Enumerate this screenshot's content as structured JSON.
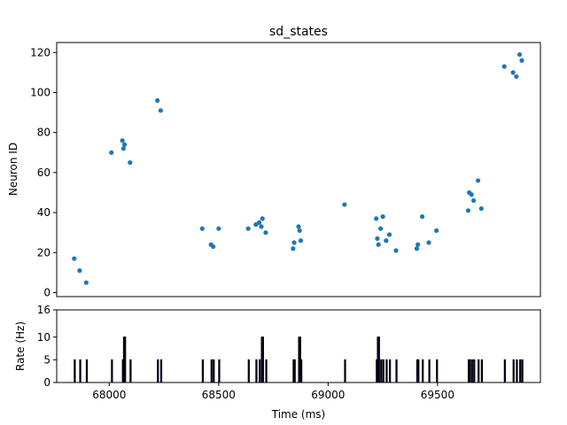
{
  "chart_data": [
    {
      "type": "scatter",
      "title": "sd_states",
      "xlabel": "",
      "ylabel": "Neuron ID",
      "xlim": [
        67760,
        69970
      ],
      "ylim": [
        -2,
        125
      ],
      "yticks": [
        0,
        20,
        40,
        60,
        80,
        100,
        120
      ],
      "grid": false,
      "marker_color": "#1f77b4",
      "points": [
        {
          "x": 67840,
          "y": 17
        },
        {
          "x": 67865,
          "y": 11
        },
        {
          "x": 67895,
          "y": 5
        },
        {
          "x": 68010,
          "y": 70
        },
        {
          "x": 68060,
          "y": 76
        },
        {
          "x": 68065,
          "y": 72
        },
        {
          "x": 68070,
          "y": 74
        },
        {
          "x": 68095,
          "y": 65
        },
        {
          "x": 68220,
          "y": 96
        },
        {
          "x": 68235,
          "y": 91
        },
        {
          "x": 68425,
          "y": 32
        },
        {
          "x": 68465,
          "y": 24
        },
        {
          "x": 68475,
          "y": 23
        },
        {
          "x": 68500,
          "y": 32
        },
        {
          "x": 68635,
          "y": 32
        },
        {
          "x": 68670,
          "y": 34
        },
        {
          "x": 68685,
          "y": 35
        },
        {
          "x": 68695,
          "y": 33
        },
        {
          "x": 68700,
          "y": 37
        },
        {
          "x": 68715,
          "y": 30
        },
        {
          "x": 68840,
          "y": 22
        },
        {
          "x": 68845,
          "y": 25
        },
        {
          "x": 68865,
          "y": 33
        },
        {
          "x": 68870,
          "y": 31
        },
        {
          "x": 68875,
          "y": 26
        },
        {
          "x": 69075,
          "y": 44
        },
        {
          "x": 69220,
          "y": 37
        },
        {
          "x": 69225,
          "y": 27
        },
        {
          "x": 69230,
          "y": 24
        },
        {
          "x": 69240,
          "y": 32
        },
        {
          "x": 69250,
          "y": 38
        },
        {
          "x": 69265,
          "y": 26
        },
        {
          "x": 69280,
          "y": 29
        },
        {
          "x": 69310,
          "y": 21
        },
        {
          "x": 69405,
          "y": 22
        },
        {
          "x": 69410,
          "y": 24
        },
        {
          "x": 69430,
          "y": 38
        },
        {
          "x": 69460,
          "y": 25
        },
        {
          "x": 69495,
          "y": 31
        },
        {
          "x": 69640,
          "y": 41
        },
        {
          "x": 69645,
          "y": 50
        },
        {
          "x": 69655,
          "y": 49
        },
        {
          "x": 69665,
          "y": 46
        },
        {
          "x": 69685,
          "y": 56
        },
        {
          "x": 69700,
          "y": 42
        },
        {
          "x": 69805,
          "y": 113
        },
        {
          "x": 69845,
          "y": 110
        },
        {
          "x": 69860,
          "y": 108
        },
        {
          "x": 69875,
          "y": 119
        },
        {
          "x": 69885,
          "y": 116
        }
      ]
    },
    {
      "type": "bar",
      "title": "",
      "xlabel": "Time (ms)",
      "ylabel": "Rate (Hz)",
      "xlim": [
        67760,
        69970
      ],
      "ylim": [
        0,
        16
      ],
      "yticks": [
        0,
        5,
        10,
        16
      ],
      "xticks": [
        68000,
        68500,
        69000,
        69500
      ],
      "bin_width": 5,
      "bar_color": "#00008b",
      "edge_color": "#000000",
      "bars": [
        {
          "x": 67840,
          "y": 5
        },
        {
          "x": 67865,
          "y": 5
        },
        {
          "x": 67895,
          "y": 5
        },
        {
          "x": 68010,
          "y": 5
        },
        {
          "x": 68060,
          "y": 5
        },
        {
          "x": 68065,
          "y": 10
        },
        {
          "x": 68070,
          "y": 10
        },
        {
          "x": 68095,
          "y": 5
        },
        {
          "x": 68220,
          "y": 5
        },
        {
          "x": 68235,
          "y": 5
        },
        {
          "x": 68425,
          "y": 5
        },
        {
          "x": 68465,
          "y": 5
        },
        {
          "x": 68475,
          "y": 5
        },
        {
          "x": 68500,
          "y": 5
        },
        {
          "x": 68635,
          "y": 5
        },
        {
          "x": 68670,
          "y": 5
        },
        {
          "x": 68685,
          "y": 5
        },
        {
          "x": 68695,
          "y": 10
        },
        {
          "x": 68700,
          "y": 10
        },
        {
          "x": 68715,
          "y": 5
        },
        {
          "x": 68840,
          "y": 5
        },
        {
          "x": 68845,
          "y": 5
        },
        {
          "x": 68865,
          "y": 10
        },
        {
          "x": 68870,
          "y": 10
        },
        {
          "x": 68875,
          "y": 5
        },
        {
          "x": 69075,
          "y": 5
        },
        {
          "x": 69220,
          "y": 5
        },
        {
          "x": 69225,
          "y": 10
        },
        {
          "x": 69230,
          "y": 10
        },
        {
          "x": 69240,
          "y": 5
        },
        {
          "x": 69250,
          "y": 5
        },
        {
          "x": 69265,
          "y": 5
        },
        {
          "x": 69280,
          "y": 5
        },
        {
          "x": 69310,
          "y": 5
        },
        {
          "x": 69405,
          "y": 5
        },
        {
          "x": 69410,
          "y": 5
        },
        {
          "x": 69430,
          "y": 5
        },
        {
          "x": 69460,
          "y": 5
        },
        {
          "x": 69495,
          "y": 5
        },
        {
          "x": 69640,
          "y": 5
        },
        {
          "x": 69645,
          "y": 5
        },
        {
          "x": 69655,
          "y": 5
        },
        {
          "x": 69665,
          "y": 5
        },
        {
          "x": 69685,
          "y": 5
        },
        {
          "x": 69700,
          "y": 5
        },
        {
          "x": 69805,
          "y": 5
        },
        {
          "x": 69845,
          "y": 5
        },
        {
          "x": 69860,
          "y": 5
        },
        {
          "x": 69875,
          "y": 5
        },
        {
          "x": 69885,
          "y": 5
        }
      ]
    }
  ]
}
